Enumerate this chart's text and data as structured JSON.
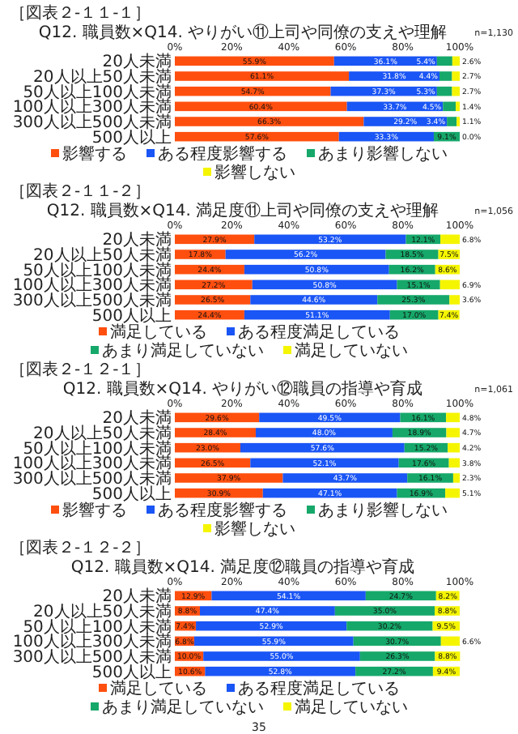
{
  "chart_data": [
    {
      "type": "bar",
      "orientation": "horizontal",
      "stacked": true,
      "legend": "bottom",
      "title": "Q12. 職員数×Q14. やりがい⑪上司や同僚の支えや理解",
      "annotations": [
        "［図表２-１１-１］",
        "n=1,130"
      ],
      "categories": [
        "20人未満",
        "20人以上50人未満",
        "50人以上100人未満",
        "100人以上300人未満",
        "300人以上500人未満",
        "500人以上"
      ],
      "xlim": [
        0,
        100
      ],
      "xticks": [
        {
          "value": 0,
          "label": "0%"
        },
        {
          "value": 20,
          "label": "20%"
        },
        {
          "value": 40,
          "label": "40%"
        },
        {
          "value": 60,
          "label": "60%"
        },
        {
          "value": 80,
          "label": "80%"
        },
        {
          "value": 100,
          "label": "100%"
        }
      ],
      "series": [
        {
          "name": "影響する",
          "color": "#ff4f0f",
          "values": [
            55.9,
            61.1,
            54.7,
            60.4,
            66.3,
            57.6
          ],
          "value_labels": [
            "55.9%",
            "61.1%",
            "54.7%",
            "60.4%",
            "66.3%",
            "57.6%"
          ]
        },
        {
          "name": "ある程度影響する",
          "color": "#1a55f5",
          "values": [
            36.1,
            31.8,
            37.3,
            33.7,
            29.2,
            33.3
          ],
          "value_labels": [
            "36.1%",
            "31.8%",
            "37.3%",
            "33.7%",
            "29.2%",
            "33.3%"
          ]
        },
        {
          "name": "あまり影響しない",
          "color": "#16a86a",
          "values": [
            5.4,
            4.4,
            5.3,
            4.5,
            3.4,
            9.1
          ],
          "value_labels": [
            "5.4%",
            "4.4%",
            "5.3%",
            "4.5%",
            "3.4%",
            "9.1%"
          ]
        },
        {
          "name": "影響しない",
          "color": "#f5f500",
          "values": [
            2.6,
            2.7,
            2.7,
            1.4,
            1.1,
            0.0
          ],
          "value_labels": [
            "2.6%",
            "2.7%",
            "2.7%",
            "1.4%",
            "1.1%",
            "0.0%"
          ]
        }
      ]
    },
    {
      "type": "bar",
      "orientation": "horizontal",
      "stacked": true,
      "legend": "bottom",
      "title": "Q12. 職員数×Q14. 満足度⑪上司や同僚の支えや理解",
      "annotations": [
        "［図表２-１１-２］",
        "n=1,056"
      ],
      "categories": [
        "20人未満",
        "20人以上50人未満",
        "50人以上100人未満",
        "100人以上300人未満",
        "300人以上500人未満",
        "500人以上"
      ],
      "xlim": [
        0,
        100
      ],
      "xticks": [
        {
          "value": 0,
          "label": "0%"
        },
        {
          "value": 20,
          "label": "20%"
        },
        {
          "value": 40,
          "label": "40%"
        },
        {
          "value": 60,
          "label": "60%"
        },
        {
          "value": 80,
          "label": "80%"
        },
        {
          "value": 100,
          "label": "100%"
        }
      ],
      "series": [
        {
          "name": "満足している",
          "color": "#ff4f0f",
          "values": [
            27.9,
            17.8,
            24.4,
            27.2,
            26.5,
            24.4
          ],
          "value_labels": [
            "27.9%",
            "17.8%",
            "24.4%",
            "27.2%",
            "26.5%",
            "24.4%"
          ]
        },
        {
          "name": "ある程度満足している",
          "color": "#1a55f5",
          "values": [
            53.2,
            56.2,
            50.8,
            50.8,
            44.6,
            51.1
          ],
          "value_labels": [
            "53.2%",
            "56.2%",
            "50.8%",
            "50.8%",
            "44.6%",
            "51.1%"
          ]
        },
        {
          "name": "あまり満足していない",
          "color": "#16a86a",
          "values": [
            12.1,
            18.5,
            16.2,
            15.1,
            25.3,
            17.0
          ],
          "value_labels": [
            "12.1%",
            "18.5%",
            "16.2%",
            "15.1%",
            "25.3%",
            "17.0%"
          ]
        },
        {
          "name": "満足していない",
          "color": "#f5f500",
          "values": [
            6.8,
            7.5,
            8.6,
            6.9,
            3.6,
            7.4
          ],
          "value_labels": [
            "6.8%",
            "7.5%",
            "8.6%",
            "6.9%",
            "3.6%",
            "7.4%"
          ]
        }
      ]
    },
    {
      "type": "bar",
      "orientation": "horizontal",
      "stacked": true,
      "legend": "bottom",
      "title": "Q12. 職員数×Q14. やりがい⑫職員の指導や育成",
      "annotations": [
        "［図表２-１２-１］",
        "n=1,061"
      ],
      "categories": [
        "20人未満",
        "20人以上50人未満",
        "50人以上100人未満",
        "100人以上300人未満",
        "300人以上500人未満",
        "500人以上"
      ],
      "xlim": [
        0,
        100
      ],
      "xticks": [
        {
          "value": 0,
          "label": "0%"
        },
        {
          "value": 20,
          "label": "20%"
        },
        {
          "value": 40,
          "label": "40%"
        },
        {
          "value": 60,
          "label": "60%"
        },
        {
          "value": 80,
          "label": "80%"
        },
        {
          "value": 100,
          "label": "100%"
        }
      ],
      "series": [
        {
          "name": "影響する",
          "color": "#ff4f0f",
          "values": [
            29.6,
            28.4,
            23.0,
            26.5,
            37.9,
            30.9
          ],
          "value_labels": [
            "29.6%",
            "28.4%",
            "23.0%",
            "26.5%",
            "37.9%",
            "30.9%"
          ]
        },
        {
          "name": "ある程度影響する",
          "color": "#1a55f5",
          "values": [
            49.5,
            48.0,
            57.6,
            52.1,
            43.7,
            47.1
          ],
          "value_labels": [
            "49.5%",
            "48.0%",
            "57.6%",
            "52.1%",
            "43.7%",
            "47.1%"
          ]
        },
        {
          "name": "あまり影響しない",
          "color": "#16a86a",
          "values": [
            16.1,
            18.9,
            15.2,
            17.6,
            16.1,
            16.9
          ],
          "value_labels": [
            "16.1%",
            "18.9%",
            "15.2%",
            "17.6%",
            "16.1%",
            "16.9%"
          ]
        },
        {
          "name": "影響しない",
          "color": "#f5f500",
          "values": [
            4.8,
            4.7,
            4.2,
            3.8,
            2.3,
            5.1
          ],
          "value_labels": [
            "4.8%",
            "4.7%",
            "4.2%",
            "3.8%",
            "2.3%",
            "5.1%"
          ]
        }
      ]
    },
    {
      "type": "bar",
      "orientation": "horizontal",
      "stacked": true,
      "legend": "bottom",
      "title": "Q12. 職員数×Q14. 満足度⑫職員の指導や育成",
      "annotations": [
        "［図表２-１２-２］",
        "35"
      ],
      "categories": [
        "20人未満",
        "20人以上50人未満",
        "50人以上100人未満",
        "100人以上300人未満",
        "300人以上500人未満",
        "500人以上"
      ],
      "xlim": [
        0,
        100
      ],
      "xticks": [
        {
          "value": 0,
          "label": "0%"
        },
        {
          "value": 20,
          "label": "20%"
        },
        {
          "value": 40,
          "label": "40%"
        },
        {
          "value": 60,
          "label": "60%"
        },
        {
          "value": 80,
          "label": "80%"
        },
        {
          "value": 100,
          "label": "100%"
        }
      ],
      "series": [
        {
          "name": "満足している",
          "color": "#ff4f0f",
          "values": [
            12.9,
            8.8,
            7.4,
            6.8,
            10.0,
            10.6
          ],
          "value_labels": [
            "12.9%",
            "8.8%",
            "7.4%",
            "6.8%",
            "10.0%",
            "10.6%"
          ]
        },
        {
          "name": "ある程度満足している",
          "color": "#1a55f5",
          "values": [
            54.1,
            47.4,
            52.9,
            55.9,
            55.0,
            52.8
          ],
          "value_labels": [
            "54.1%",
            "47.4%",
            "52.9%",
            "55.9%",
            "55.0%",
            "52.8%"
          ]
        },
        {
          "name": "あまり満足していない",
          "color": "#16a86a",
          "values": [
            24.7,
            35.0,
            30.2,
            30.7,
            26.3,
            27.2
          ],
          "value_labels": [
            "24.7%",
            "35.0%",
            "30.2%",
            "30.7%",
            "26.3%",
            "27.2%"
          ]
        },
        {
          "name": "満足していない",
          "color": "#f5f500",
          "values": [
            8.2,
            8.8,
            9.5,
            6.6,
            8.8,
            9.4
          ],
          "value_labels": [
            "8.2%",
            "8.8%",
            "9.5%",
            "6.6%",
            "8.8%",
            "9.4%"
          ]
        }
      ]
    }
  ]
}
